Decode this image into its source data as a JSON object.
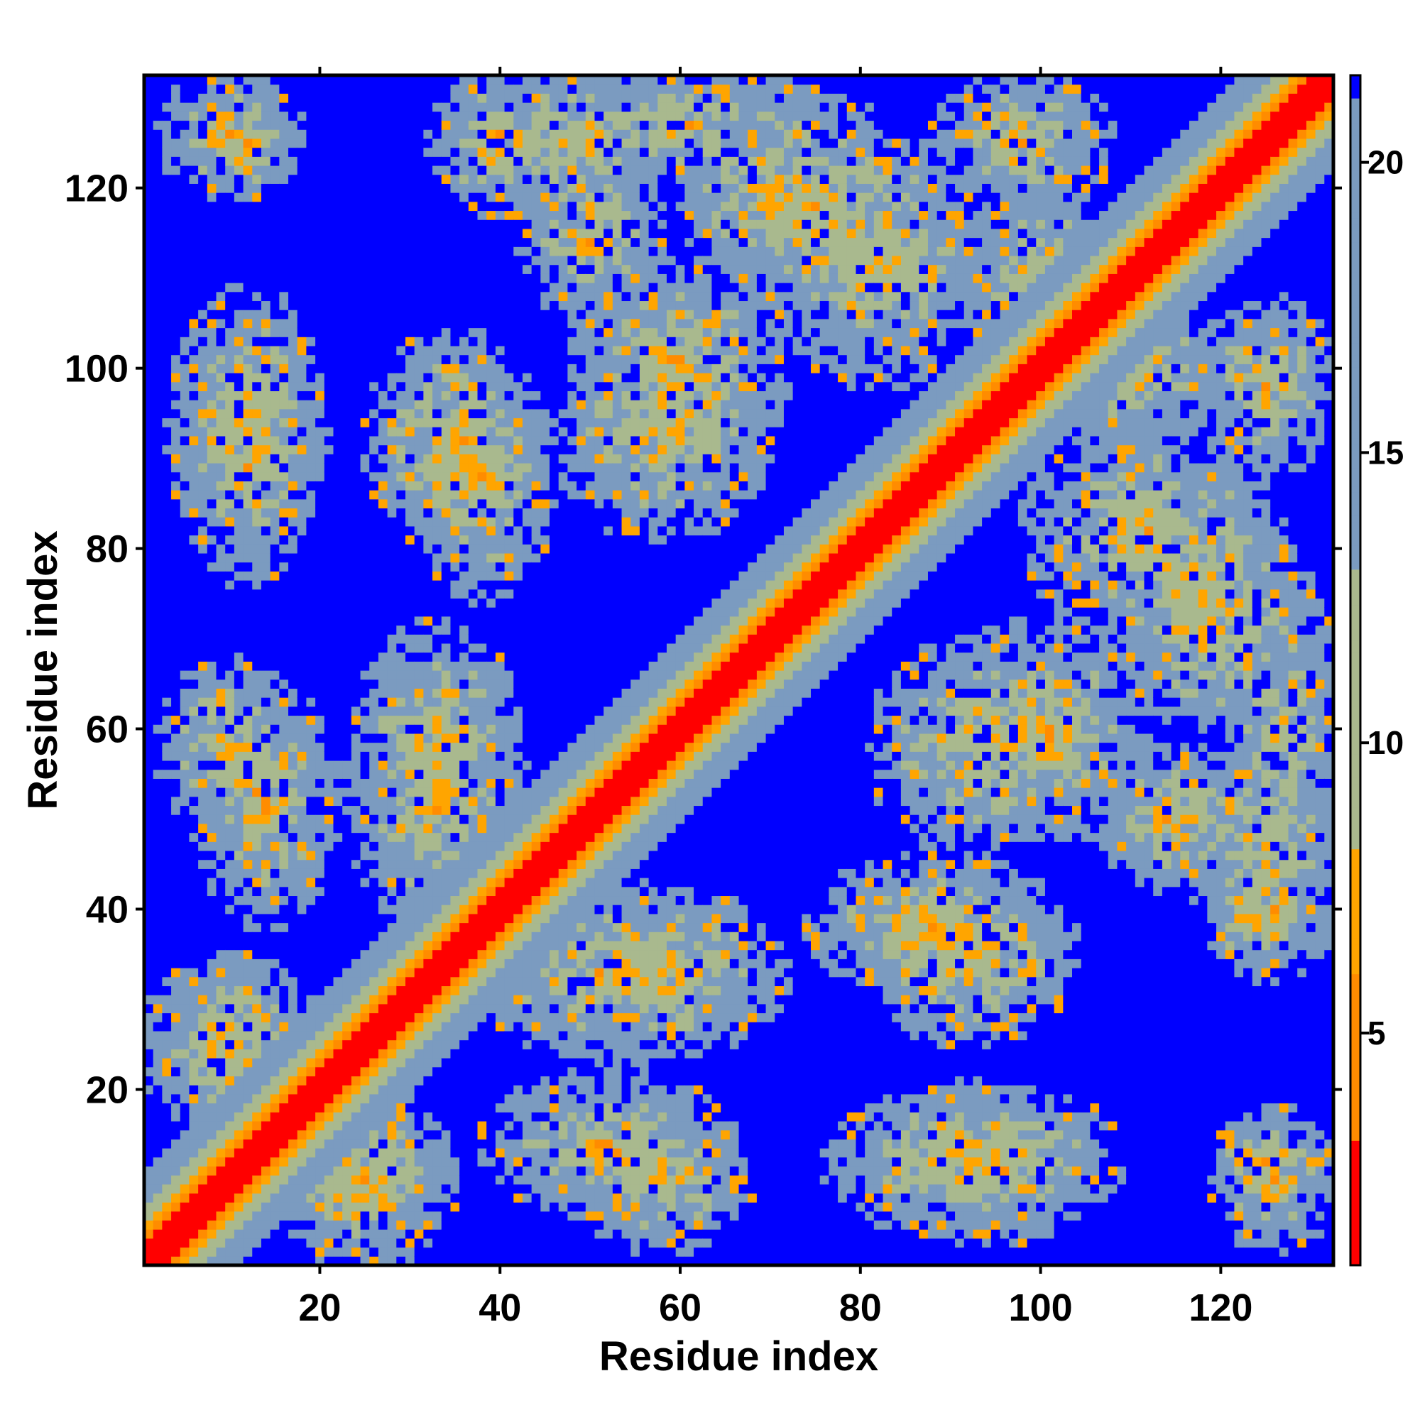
{
  "chart_data": {
    "type": "heatmap",
    "title": "",
    "xlabel": "Residue index",
    "ylabel": "Residue index",
    "n_residues": 132,
    "xlim": [
      1,
      132
    ],
    "ylim": [
      1,
      132
    ],
    "x_ticks": [
      20,
      40,
      60,
      80,
      100,
      120
    ],
    "y_ticks": [
      20,
      40,
      60,
      80,
      100,
      120
    ],
    "x_tick_labels": [
      "20",
      "40",
      "60",
      "80",
      "100",
      "120"
    ],
    "y_tick_labels": [
      "20",
      "40",
      "60",
      "80",
      "100",
      "120"
    ],
    "colorbar": {
      "range": [
        1,
        21.5
      ],
      "ticks": [
        5,
        10,
        15,
        20
      ],
      "tick_labels": [
        "5",
        "10",
        "15",
        "20"
      ],
      "cutoff": 20,
      "colors": {
        "red": "#ff0000",
        "orange": "#ff8c00",
        "light_orange": "#ffa500",
        "sage": "#a9b98e",
        "steel": "#7b9bc0",
        "blue": "#0000ff"
      }
    },
    "description_symmetric": true,
    "structure": {
      "diagonal_band": {
        "red_width": 2,
        "orange_width": 4,
        "halo_width": 10
      },
      "contact_blobs": [
        {
          "x_center": 10,
          "y_center": 58,
          "x_halfwidth": 8,
          "y_halfwidth": 10
        },
        {
          "x_center": 33,
          "y_center": 60,
          "x_halfwidth": 9,
          "y_halfwidth": 12
        },
        {
          "x_center": 12,
          "y_center": 125,
          "x_halfwidth": 6,
          "y_halfwidth": 6
        },
        {
          "x_center": 12,
          "y_center": 95,
          "x_halfwidth": 9,
          "y_halfwidth": 14
        },
        {
          "x_center": 35,
          "y_center": 92,
          "x_halfwidth": 10,
          "y_halfwidth": 12
        },
        {
          "x_center": 48,
          "y_center": 125,
          "x_halfwidth": 12,
          "y_halfwidth": 8
        },
        {
          "x_center": 60,
          "y_center": 100,
          "x_halfwidth": 12,
          "y_halfwidth": 12
        },
        {
          "x_center": 70,
          "y_center": 120,
          "x_halfwidth": 10,
          "y_halfwidth": 12
        },
        {
          "x_center": 82,
          "y_center": 112,
          "x_halfwidth": 12,
          "y_halfwidth": 14
        },
        {
          "x_center": 98,
          "y_center": 125,
          "x_halfwidth": 10,
          "y_halfwidth": 8
        },
        {
          "x_center": 110,
          "y_center": 100,
          "x_halfwidth": 10,
          "y_halfwidth": 10
        },
        {
          "x_center": 88,
          "y_center": 38,
          "x_halfwidth": 14,
          "y_halfwidth": 8
        },
        {
          "x_center": 93,
          "y_center": 58,
          "x_halfwidth": 12,
          "y_halfwidth": 12
        },
        {
          "x_center": 118,
          "y_center": 75,
          "x_halfwidth": 12,
          "y_halfwidth": 12
        },
        {
          "x_center": 115,
          "y_center": 50,
          "x_halfwidth": 10,
          "y_halfwidth": 8
        },
        {
          "x_center": 127,
          "y_center": 60,
          "x_halfwidth": 6,
          "y_halfwidth": 14
        },
        {
          "x_center": 90,
          "y_center": 12,
          "x_halfwidth": 14,
          "y_halfwidth": 8
        },
        {
          "x_center": 126,
          "y_center": 10,
          "x_halfwidth": 7,
          "y_halfwidth": 8
        },
        {
          "x_center": 52,
          "y_center": 14,
          "x_halfwidth": 14,
          "y_halfwidth": 8
        },
        {
          "x_center": 52,
          "y_center": 33,
          "x_halfwidth": 14,
          "y_halfwidth": 10
        },
        {
          "x_center": 10,
          "y_center": 25,
          "x_halfwidth": 10,
          "y_halfwidth": 10
        },
        {
          "x_center": 25,
          "y_center": 10,
          "x_halfwidth": 10,
          "y_halfwidth": 8
        },
        {
          "x_center": 125,
          "y_center": 40,
          "x_halfwidth": 8,
          "y_halfwidth": 8
        }
      ]
    }
  }
}
